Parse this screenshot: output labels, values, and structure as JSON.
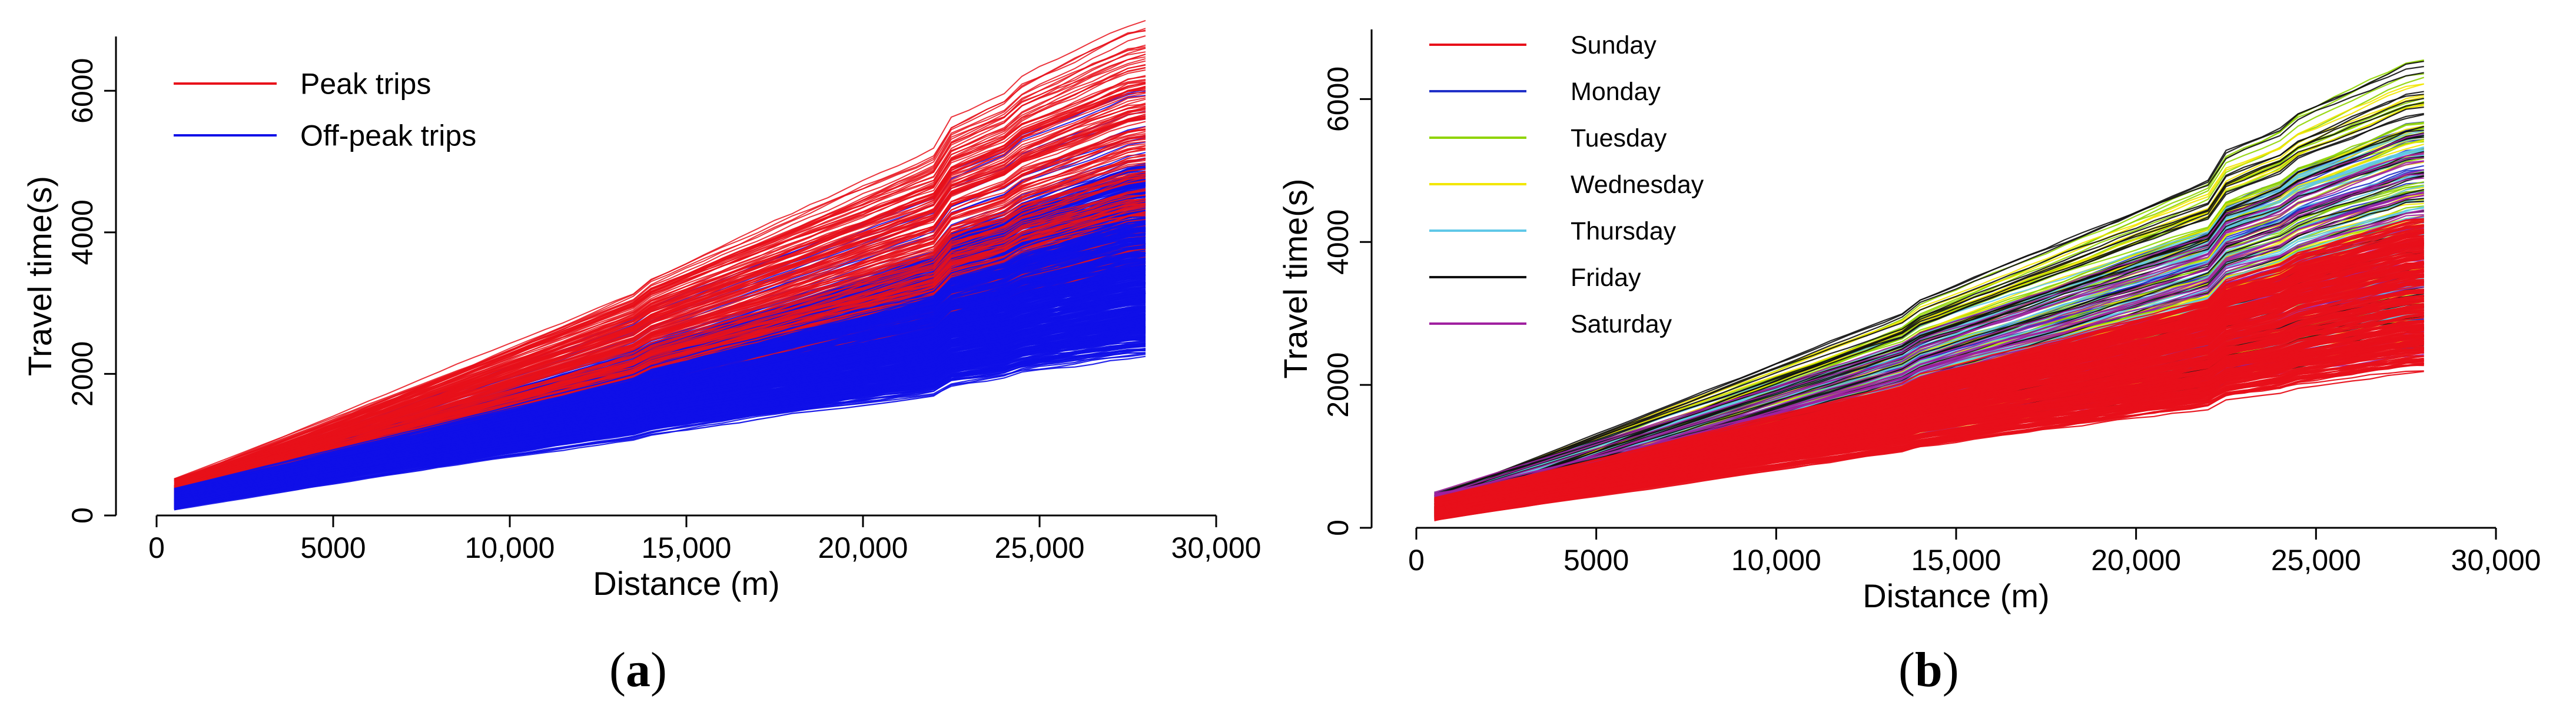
{
  "chart_data": [
    {
      "type": "line",
      "panel": "a",
      "xlabel": "Distance (m)",
      "ylabel": "Travel time(s)",
      "xlim": [
        0,
        30000
      ],
      "ylim": [
        0,
        6800
      ],
      "xticks": [
        0,
        5000,
        10000,
        15000,
        20000,
        25000,
        30000
      ],
      "xtick_labels": [
        "0",
        "5000",
        "10,000",
        "15,000",
        "20,000",
        "25,000",
        "30,000"
      ],
      "yticks": [
        0,
        2000,
        4000,
        6000
      ],
      "ytick_labels": [
        "0",
        "2000",
        "4000",
        "6000"
      ],
      "grid": false,
      "legend_position": "top-left",
      "series": [
        {
          "name": "Peak trips",
          "color": "#e8101a",
          "distance_range": [
            500,
            28000
          ],
          "travel_time_start_range": [
            250,
            520
          ],
          "travel_time_end_range": [
            2600,
            6800
          ],
          "approx_curves": 180
        },
        {
          "name": "Off-peak trips",
          "color": "#1010e8",
          "distance_range": [
            500,
            28000
          ],
          "travel_time_start_range": [
            80,
            420
          ],
          "travel_time_end_range": [
            2350,
            6400
          ],
          "approx_curves": 500
        }
      ]
    },
    {
      "type": "line",
      "panel": "b",
      "xlabel": "Distance (m)",
      "ylabel": "Travel time(s)",
      "xlim": [
        0,
        30000
      ],
      "ylim": [
        0,
        7000
      ],
      "xticks": [
        0,
        5000,
        10000,
        15000,
        20000,
        25000,
        30000
      ],
      "xtick_labels": [
        "0",
        "5000",
        "10,000",
        "15,000",
        "20,000",
        "25,000",
        "30,000"
      ],
      "yticks": [
        0,
        2000,
        4000,
        6000
      ],
      "ytick_labels": [
        "0",
        "2000",
        "4000",
        "6000"
      ],
      "grid": false,
      "legend_position": "top-left",
      "series": [
        {
          "name": "Sunday",
          "color": "#e8101a",
          "distance_range": [
            500,
            28000
          ],
          "travel_time_end_range": [
            2350,
            4200
          ]
        },
        {
          "name": "Monday",
          "color": "#2030c8",
          "distance_range": [
            500,
            28000
          ],
          "travel_time_end_range": [
            2600,
            5600
          ]
        },
        {
          "name": "Tuesday",
          "color": "#8fd400",
          "distance_range": [
            500,
            28000
          ],
          "travel_time_end_range": [
            2800,
            6500
          ]
        },
        {
          "name": "Wednesday",
          "color": "#f2e600",
          "distance_range": [
            500,
            28000
          ],
          "travel_time_end_range": [
            2700,
            6200
          ]
        },
        {
          "name": "Thursday",
          "color": "#5fc8e8",
          "distance_range": [
            500,
            28000
          ],
          "travel_time_end_range": [
            2700,
            5800
          ]
        },
        {
          "name": "Friday",
          "color": "#101010",
          "distance_range": [
            500,
            28000
          ],
          "travel_time_end_range": [
            2600,
            6800
          ]
        },
        {
          "name": "Saturday",
          "color": "#a020a0",
          "distance_range": [
            500,
            28000
          ],
          "travel_time_end_range": [
            2600,
            5400
          ]
        }
      ]
    }
  ],
  "panels": {
    "a": {
      "label": "a"
    },
    "b": {
      "label": "b"
    }
  }
}
